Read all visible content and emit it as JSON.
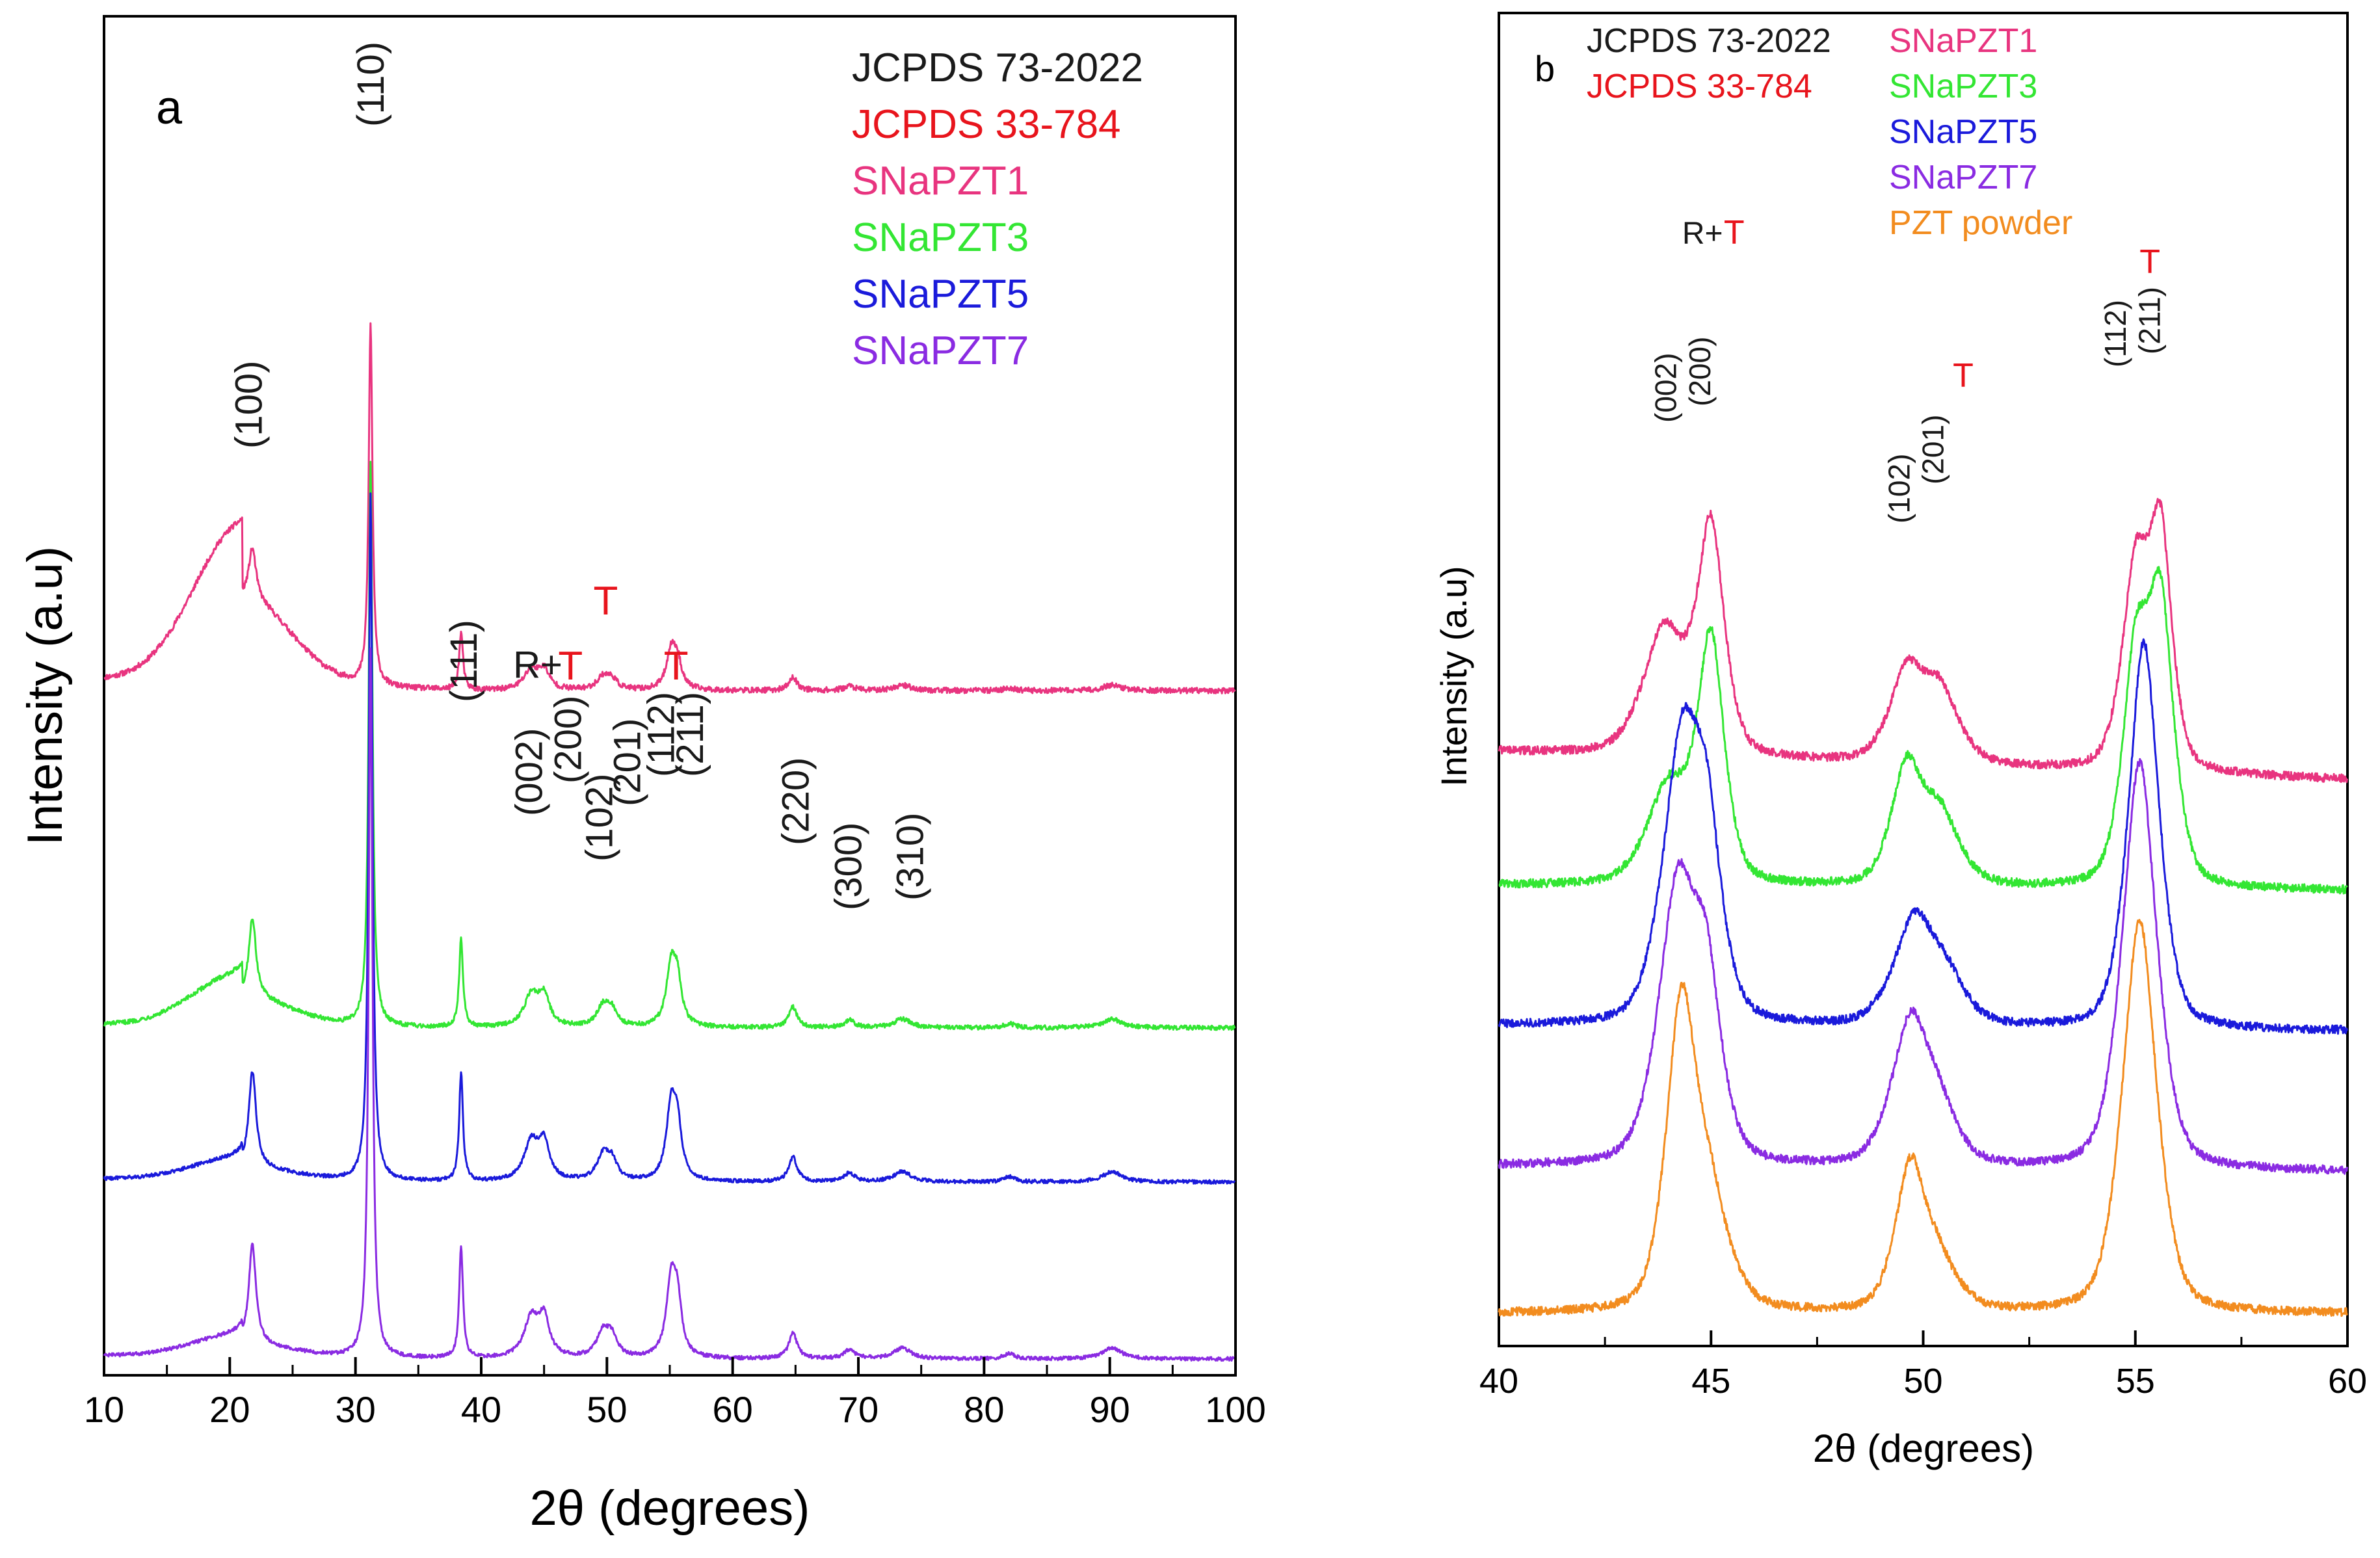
{
  "chart_data": [
    {
      "panel_label": "a",
      "type": "line",
      "xlabel": "2θ (degrees)",
      "ylabel": "Intensity (a.u)",
      "xlim": [
        10,
        100
      ],
      "xticks": [
        10,
        20,
        30,
        40,
        50,
        60,
        70,
        80,
        90,
        100
      ],
      "y_ticks_shown": false,
      "legend_position": "top-right",
      "legend": [
        {
          "label": "JCPDS 73-2022",
          "color": "#1a1a1a"
        },
        {
          "label": "JCPDS 33-784",
          "color": "#e8141c"
        },
        {
          "label": "SNaPZT1",
          "color": "#e8347f"
        },
        {
          "label": "SNaPZT3",
          "color": "#33e633"
        },
        {
          "label": "SNaPZT5",
          "color": "#1a1adb"
        },
        {
          "label": "SNaPZT7",
          "color": "#8a2be2"
        }
      ],
      "series": [
        {
          "name": "SNaPZT1",
          "color": "#e8347f",
          "baseline": 0.22,
          "hump": 0.85,
          "scale": 0.5,
          "noise": 0.015
        },
        {
          "name": "SNaPZT3",
          "color": "#33e633",
          "baseline": 0.12,
          "hump": 0.28,
          "scale": 0.78,
          "noise": 0.012
        },
        {
          "name": "SNaPZT5",
          "color": "#1a1adb",
          "baseline": 0.06,
          "hump": 0.12,
          "scale": 0.95,
          "noise": 0.01
        },
        {
          "name": "SNaPZT7",
          "color": "#8a2be2",
          "baseline": 0.0,
          "hump": 0.12,
          "scale": 0.98,
          "noise": 0.01
        }
      ],
      "peaks": [
        {
          "two_theta": 21.8,
          "height": 0.55,
          "width": 0.35
        },
        {
          "two_theta": 31.2,
          "height": 3.9,
          "width": 0.18
        },
        {
          "two_theta": 38.4,
          "height": 0.62,
          "width": 0.18
        },
        {
          "two_theta": 44.0,
          "height": 0.22,
          "width": 0.7
        },
        {
          "two_theta": 45.0,
          "height": 0.2,
          "width": 0.5
        },
        {
          "two_theta": 49.7,
          "height": 0.14,
          "width": 0.6
        },
        {
          "two_theta": 50.4,
          "height": 0.1,
          "width": 0.5
        },
        {
          "two_theta": 55.1,
          "height": 0.4,
          "width": 0.45
        },
        {
          "two_theta": 55.6,
          "height": 0.28,
          "width": 0.4
        },
        {
          "two_theta": 64.8,
          "height": 0.14,
          "width": 0.4
        },
        {
          "two_theta": 69.3,
          "height": 0.05,
          "width": 0.5
        },
        {
          "two_theta": 73.5,
          "height": 0.06,
          "width": 0.8
        },
        {
          "two_theta": 82.0,
          "height": 0.03,
          "width": 0.5
        },
        {
          "two_theta": 90.2,
          "height": 0.06,
          "width": 0.9
        }
      ],
      "annotations": [
        {
          "text": "(100)",
          "x": 21.5,
          "color": "#1a1a1a",
          "rotated": true
        },
        {
          "text": "(110)",
          "x": 31.2,
          "color": "#1a1a1a",
          "rotated": true
        },
        {
          "text": "(111)",
          "x": 38.6,
          "color": "#1a1a1a",
          "rotated": true
        },
        {
          "text": "(002)",
          "x": 43.8,
          "color": "#1a1a1a",
          "rotated": true
        },
        {
          "text": "(200)",
          "x": 46.9,
          "color": "#1a1a1a",
          "rotated": true
        },
        {
          "text": "(102)",
          "x": 49.4,
          "color": "#1a1a1a",
          "rotated": true
        },
        {
          "text": "(201)",
          "x": 51.6,
          "color": "#1a1a1a",
          "rotated": true
        },
        {
          "text": "(112)",
          "x": 54.3,
          "color": "#1a1a1a",
          "rotated": true
        },
        {
          "text": "(211)",
          "x": 56.6,
          "color": "#1a1a1a",
          "rotated": true
        },
        {
          "text": "(220)",
          "x": 65.0,
          "color": "#1a1a1a",
          "rotated": true
        },
        {
          "text": "(300)",
          "x": 69.2,
          "color": "#1a1a1a",
          "rotated": true
        },
        {
          "text": "(310)",
          "x": 74.1,
          "color": "#1a1a1a",
          "rotated": true
        },
        {
          "text": "R+",
          "x": 44.5,
          "color": "#1a1a1a",
          "rotated": false
        },
        {
          "text": "T",
          "x": 47.1,
          "color": "#e8141c",
          "rotated": false
        },
        {
          "text": "T",
          "x": 49.9,
          "color": "#e8141c",
          "rotated": false
        },
        {
          "text": "T",
          "x": 55.5,
          "color": "#e8141c",
          "rotated": false
        }
      ]
    },
    {
      "panel_label": "b",
      "type": "line",
      "xlabel": "2θ (degrees)",
      "ylabel": "Intensity (a.u)",
      "xlim": [
        40,
        60
      ],
      "xticks": [
        40,
        45,
        50,
        55,
        60
      ],
      "y_ticks_shown": false,
      "legend_position": "top-left",
      "legend": [
        {
          "label": "JCPDS 73-2022",
          "color": "#1a1a1a"
        },
        {
          "label": "JCPDS 33-784",
          "color": "#e8141c"
        },
        {
          "label": "SNaPZT1",
          "color": "#e8347f"
        },
        {
          "label": "SNaPZT3",
          "color": "#33e633"
        },
        {
          "label": "SNaPZT5",
          "color": "#1a1adb"
        },
        {
          "label": "SNaPZT7",
          "color": "#8a2be2"
        },
        {
          "label": "PZT powder",
          "color": "#f28c1f"
        }
      ],
      "series": [
        {
          "name": "SNaPZT1",
          "color": "#e8347f",
          "baseline": 0.8,
          "tilt": 0.1,
          "peaks": [
            [
              43.9,
              0.18,
              0.55
            ],
            [
              45.0,
              0.32,
              0.35
            ],
            [
              49.6,
              0.12,
              0.45
            ],
            [
              50.4,
              0.1,
              0.5
            ],
            [
              55.0,
              0.28,
              0.35
            ],
            [
              55.6,
              0.32,
              0.3
            ]
          ]
        },
        {
          "name": "SNaPZT3",
          "color": "#33e633",
          "baseline": 0.61,
          "tilt": 0.02,
          "peaks": [
            [
              44.0,
              0.14,
              0.55
            ],
            [
              45.0,
              0.34,
              0.35
            ],
            [
              49.6,
              0.16,
              0.4
            ],
            [
              50.4,
              0.1,
              0.5
            ],
            [
              55.0,
              0.3,
              0.35
            ],
            [
              55.6,
              0.38,
              0.35
            ]
          ]
        },
        {
          "name": "SNaPZT5",
          "color": "#1a1adb",
          "baseline": 0.41,
          "tilt": 0.02,
          "peaks": [
            [
              44.3,
              0.38,
              0.5
            ],
            [
              44.9,
              0.22,
              0.4
            ],
            [
              49.8,
              0.15,
              0.55
            ],
            [
              50.6,
              0.05,
              0.5
            ],
            [
              55.2,
              0.55,
              0.4
            ]
          ]
        },
        {
          "name": "SNaPZT7",
          "color": "#8a2be2",
          "baseline": 0.21,
          "tilt": 0.02,
          "peaks": [
            [
              44.2,
              0.38,
              0.5
            ],
            [
              44.9,
              0.22,
              0.4
            ],
            [
              49.7,
              0.2,
              0.5
            ],
            [
              50.4,
              0.06,
              0.5
            ],
            [
              55.1,
              0.58,
              0.45
            ]
          ]
        },
        {
          "name": "PZT powder",
          "color": "#f28c1f",
          "baseline": 0.0,
          "tilt": 0.0,
          "peaks": [
            [
              44.3,
              0.42,
              0.4
            ],
            [
              45.0,
              0.14,
              0.5
            ],
            [
              49.7,
              0.2,
              0.4
            ],
            [
              50.4,
              0.06,
              0.5
            ],
            [
              55.1,
              0.56,
              0.45
            ]
          ]
        }
      ],
      "annotations": [
        {
          "text": "(002)",
          "x": 44.3,
          "color": "#1a1a1a",
          "rotated": true
        },
        {
          "text": "(200)",
          "x": 45.1,
          "color": "#1a1a1a",
          "rotated": true
        },
        {
          "text": "(102)",
          "x": 49.8,
          "color": "#1a1a1a",
          "rotated": true
        },
        {
          "text": "(201)",
          "x": 50.6,
          "color": "#1a1a1a",
          "rotated": true
        },
        {
          "text": "(112)",
          "x": 54.9,
          "color": "#1a1a1a",
          "rotated": true
        },
        {
          "text": "(211)",
          "x": 55.7,
          "color": "#1a1a1a",
          "rotated": true
        },
        {
          "text": "R+",
          "x": 44.8,
          "color": "#1a1a1a",
          "rotated": false
        },
        {
          "text": "T",
          "x": 45.3,
          "color": "#e8141c",
          "rotated": false
        },
        {
          "text": "T",
          "x": 50.7,
          "color": "#e8141c",
          "rotated": false
        },
        {
          "text": "T",
          "x": 55.1,
          "color": "#e8141c",
          "rotated": false
        }
      ]
    }
  ]
}
